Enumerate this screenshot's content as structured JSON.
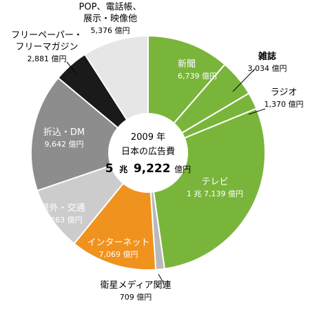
{
  "chart_data": {
    "type": "pie",
    "title": "",
    "center_label": {
      "line1": "2009 年",
      "line2": "日本の広告費",
      "amount_big": "5",
      "unit_cho": "兆",
      "amount_rest": "9,222",
      "unit_oku": "億円"
    },
    "unit": "億円",
    "slices": [
      {
        "name": "新聞",
        "value": 6739,
        "value_label": "6,739 億円",
        "color": "#7ab53b"
      },
      {
        "name": "雑誌",
        "value": 3034,
        "value_label": "3,034 億円",
        "color": "#7ab53b"
      },
      {
        "name": "ラジオ",
        "value": 1370,
        "value_label": "1,370 億円",
        "color": "#7ab53b"
      },
      {
        "name": "テレビ",
        "value": 17139,
        "value_label": "1 兆 7,139 億円",
        "color": "#7ab53b"
      },
      {
        "name": "衛星メディア関連",
        "value": 709,
        "value_label": "709 億円",
        "color": "#b9b9b9"
      },
      {
        "name": "インターネット",
        "value": 7069,
        "value_label": "7,069 億円",
        "color": "#f0921e"
      },
      {
        "name": "屋外・交通",
        "value": 5263,
        "value_label": "5,263 億円",
        "color": "#cccccc"
      },
      {
        "name": "折込・DM",
        "value": 9642,
        "value_label": "9,642 億円",
        "color": "#8d8d8d"
      },
      {
        "name": "フリーペーパー・フリーマガジン",
        "value": 2881,
        "value_label": "2,881 億円",
        "color": "#1a1a1a"
      },
      {
        "name": "POP、電話帳、展示・映像他",
        "value": 5376,
        "value_label": "5,376 億円",
        "color": "#e6e6e6"
      }
    ],
    "label_lines": [
      [
        "新聞"
      ],
      [
        "雑誌"
      ],
      [
        "ラジオ"
      ],
      [
        "テレビ"
      ],
      [
        "衛星メディア関連"
      ],
      [
        "インターネット"
      ],
      [
        "屋外・交通"
      ],
      [
        "折込・DM"
      ],
      [
        "フリーペーパー・",
        "フリーマガジン"
      ],
      [
        "POP、電話帳、",
        "展示・映像他"
      ]
    ]
  }
}
